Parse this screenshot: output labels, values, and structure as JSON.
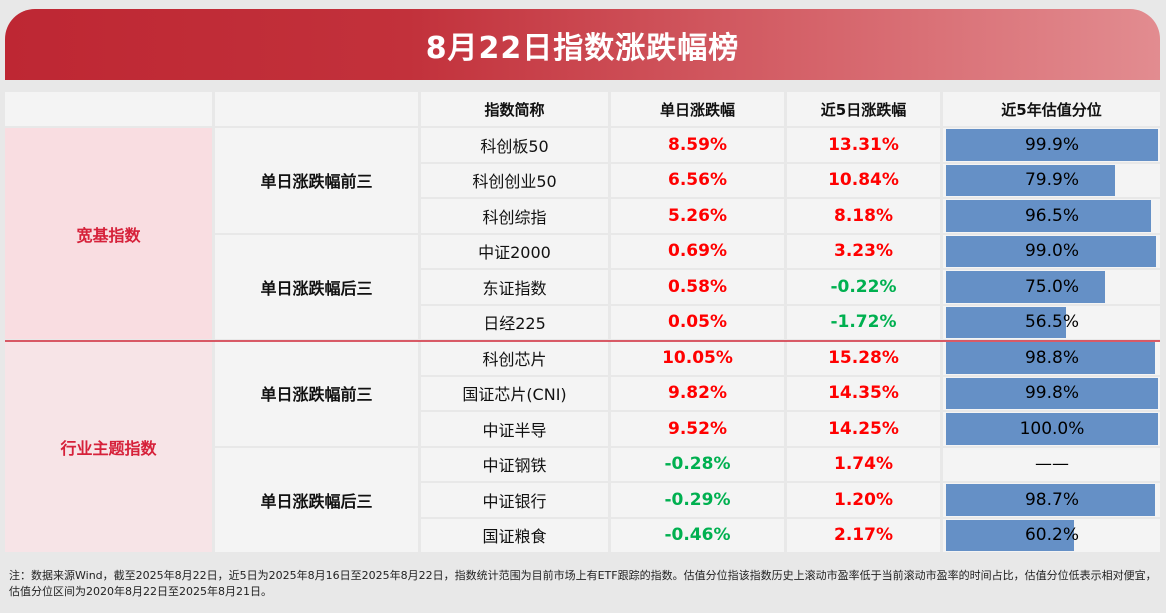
{
  "title": "8月22日指数涨跌幅榜",
  "headers": [
    "",
    "",
    "指数简称",
    "单日涨跌幅",
    "近5日涨跌幅",
    "近5年估值分位"
  ],
  "categories": [
    {
      "label": "宽基指数",
      "groups": [
        {
          "label": "单日涨跌幅前三",
          "rows": [
            {
              "name": "科创板50",
              "day": "8.59%",
              "day_dir": "up",
              "five": "13.31%",
              "five_dir": "up",
              "pct_label": "99.9%",
              "pct": 99.9
            },
            {
              "name": "科创创业50",
              "day": "6.56%",
              "day_dir": "up",
              "five": "10.84%",
              "five_dir": "up",
              "pct_label": "79.9%",
              "pct": 79.9
            },
            {
              "name": "科创综指",
              "day": "5.26%",
              "day_dir": "up",
              "five": "8.18%",
              "five_dir": "up",
              "pct_label": "96.5%",
              "pct": 96.5
            }
          ]
        },
        {
          "label": "单日涨跌幅后三",
          "rows": [
            {
              "name": "中证2000",
              "day": "0.69%",
              "day_dir": "up",
              "five": "3.23%",
              "five_dir": "up",
              "pct_label": "99.0%",
              "pct": 99.0
            },
            {
              "name": "东证指数",
              "day": "0.58%",
              "day_dir": "up",
              "five": "-0.22%",
              "five_dir": "down",
              "pct_label": "75.0%",
              "pct": 75.0
            },
            {
              "name": "日经225",
              "day": "0.05%",
              "day_dir": "up",
              "five": "-1.72%",
              "five_dir": "down",
              "pct_label": "56.5%",
              "pct": 56.5
            }
          ]
        }
      ]
    },
    {
      "label": "行业主题指数",
      "groups": [
        {
          "label": "单日涨跌幅前三",
          "rows": [
            {
              "name": "科创芯片",
              "day": "10.05%",
              "day_dir": "up",
              "five": "15.28%",
              "five_dir": "up",
              "pct_label": "98.8%",
              "pct": 98.8
            },
            {
              "name": "国证芯片(CNI)",
              "day": "9.82%",
              "day_dir": "up",
              "five": "14.35%",
              "five_dir": "up",
              "pct_label": "99.8%",
              "pct": 99.8
            },
            {
              "name": "中证半导",
              "day": "9.52%",
              "day_dir": "up",
              "five": "14.25%",
              "five_dir": "up",
              "pct_label": "100.0%",
              "pct": 100.0
            }
          ]
        },
        {
          "label": "单日涨跌幅后三",
          "rows": [
            {
              "name": "中证钢铁",
              "day": "-0.28%",
              "day_dir": "down",
              "five": "1.74%",
              "five_dir": "up",
              "pct_label": "——",
              "pct": null
            },
            {
              "name": "中证银行",
              "day": "-0.29%",
              "day_dir": "down",
              "five": "1.20%",
              "five_dir": "up",
              "pct_label": "98.7%",
              "pct": 98.7
            },
            {
              "name": "国证粮食",
              "day": "-0.46%",
              "day_dir": "down",
              "five": "2.17%",
              "five_dir": "up",
              "pct_label": "60.2%",
              "pct": 60.2
            }
          ]
        }
      ]
    }
  ],
  "colors": {
    "up": "#ff0000",
    "down": "#00b050",
    "bar": "#6590c6",
    "accent": "#be2733"
  },
  "note": "注：数据来源Wind，截至2025年8月22日，近5日为2025年8月16日至2025年8月22日，指数统计范围为目前市场上有ETF跟踪的指数。估值分位指该指数历史上滚动市盈率低于当前滚动市盈率的时间占比，估值分位低表示相对便宜，估值分位区间为2020年8月22日至2025年8月21日。"
}
